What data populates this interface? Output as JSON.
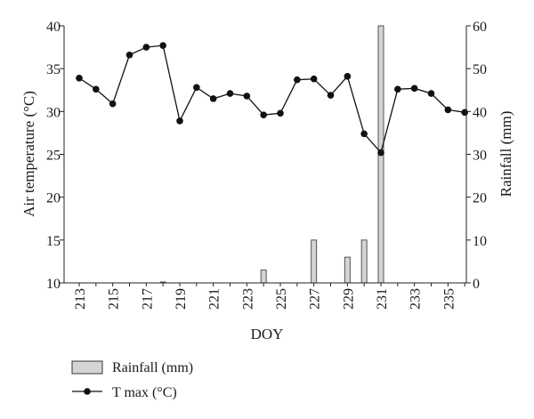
{
  "chart_data": {
    "type": "bar+line",
    "xlabel": "DOY",
    "ylabel_left": "Air temperature (°C)",
    "ylabel_right": "Rainfall (mm)",
    "ylim_left": [
      10,
      40
    ],
    "ylim_right": [
      0,
      60
    ],
    "yticks_left": [
      "10",
      "15",
      "20",
      "25",
      "30",
      "35",
      "40"
    ],
    "yticks_right": [
      "0",
      "10",
      "20",
      "30",
      "40",
      "50",
      "60"
    ],
    "xlim": [
      213,
      236
    ],
    "xticks": [
      "213",
      "215",
      "217",
      "219",
      "221",
      "223",
      "225",
      "227",
      "229",
      "231",
      "233",
      "235"
    ],
    "grid": false,
    "legend_position": "bottom-left",
    "series": [
      {
        "name": "Rainfall (mm)",
        "type": "bar",
        "axis": "right",
        "color": "#d4d4d4",
        "x": [
          218,
          224,
          227,
          229,
          230,
          231
        ],
        "values": [
          0.2,
          3,
          10,
          6,
          10,
          60
        ]
      },
      {
        "name": "T max (°C)",
        "type": "line",
        "axis": "left",
        "color": "#111111",
        "x": [
          213,
          214,
          215,
          216,
          217,
          218,
          219,
          220,
          221,
          222,
          223,
          224,
          225,
          226,
          227,
          228,
          229,
          230,
          231,
          232,
          233,
          234,
          235,
          236
        ],
        "values": [
          33.9,
          32.6,
          30.9,
          36.6,
          37.5,
          37.7,
          28.9,
          32.8,
          31.5,
          32.1,
          31.8,
          29.6,
          29.8,
          33.7,
          33.8,
          31.9,
          34.1,
          27.4,
          25.2,
          32.6,
          32.7,
          32.1,
          30.2,
          29.9
        ]
      }
    ]
  }
}
